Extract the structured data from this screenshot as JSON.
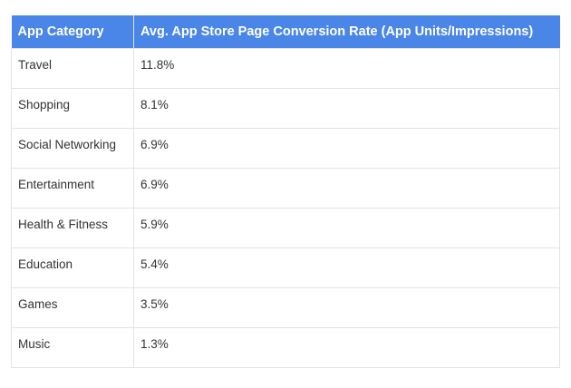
{
  "chart_data": {
    "type": "table",
    "columns": [
      "App Category",
      "Avg. App Store Page Conversion Rate (App Units/Impressions)"
    ],
    "rows": [
      {
        "category": "Travel",
        "rate": "11.8%"
      },
      {
        "category": "Shopping",
        "rate": "8.1%"
      },
      {
        "category": "Social Networking",
        "rate": "6.9%"
      },
      {
        "category": "Entertainment",
        "rate": "6.9%"
      },
      {
        "category": "Health & Fitness",
        "rate": "5.9%"
      },
      {
        "category": "Education",
        "rate": "5.4%"
      },
      {
        "category": "Games",
        "rate": "3.5%"
      },
      {
        "category": "Music",
        "rate": "1.3%"
      }
    ]
  },
  "colors": {
    "header_bg": "#4a86e8",
    "header_text": "#ffffff",
    "border": "#e3e3e3",
    "cell_text": "#333333"
  }
}
